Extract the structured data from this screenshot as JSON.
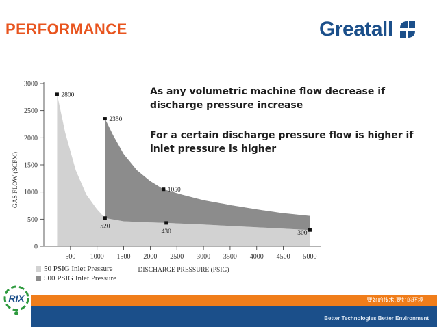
{
  "page": {
    "title": "PERFORMANCE",
    "logo_text": "Greatall",
    "notes": [
      "As any volumetric machine flow decrease if discharge pressure increase",
      "For a certain discharge pressure flow is higher if inlet pressure is higher"
    ],
    "footer_cn": "要好的技术,要好的环境",
    "footer_en": "Better Technologies  Better Environment",
    "rix_logo": "RIX"
  },
  "colors": {
    "title": "#e8541e",
    "logo_text": "#1b4f8a",
    "logo_mark": "#1b4f8a",
    "series_50": "#d2d2d2",
    "series_500": "#8c8c8c",
    "band_orange": "#f07d1a",
    "band_blue": "#1b4f8a"
  },
  "chart_data": {
    "type": "area",
    "xlabel": "DISCHARGE PRESSURE (PSIG)",
    "ylabel": "GAS FLOW (SCFM)",
    "xlim": [
      0,
      5200
    ],
    "ylim": [
      0,
      3000
    ],
    "xticks": [
      500,
      1000,
      1500,
      2000,
      2500,
      3000,
      3500,
      4000,
      4500,
      5000
    ],
    "yticks": [
      0,
      500,
      1000,
      1500,
      2000,
      2500,
      3000
    ],
    "series": [
      {
        "name": "50 PSIG Inlet Pressure",
        "upper": [
          [
            250,
            2800
          ],
          [
            400,
            2100
          ],
          [
            600,
            1400
          ],
          [
            800,
            950
          ],
          [
            1000,
            680
          ],
          [
            1150,
            520
          ],
          [
            1500,
            460
          ],
          [
            2000,
            440
          ],
          [
            2300,
            430
          ],
          [
            3000,
            400
          ],
          [
            4000,
            350
          ],
          [
            5000,
            300
          ]
        ],
        "lower": [
          [
            250,
            0
          ],
          [
            5000,
            0
          ]
        ]
      },
      {
        "name": "500 PSIG Inlet Pressure",
        "upper": [
          [
            1150,
            2350
          ],
          [
            1300,
            2050
          ],
          [
            1500,
            1700
          ],
          [
            1750,
            1400
          ],
          [
            2000,
            1200
          ],
          [
            2250,
            1050
          ],
          [
            2600,
            950
          ],
          [
            3000,
            850
          ],
          [
            3500,
            760
          ],
          [
            4000,
            680
          ],
          [
            4500,
            610
          ],
          [
            5000,
            560
          ]
        ],
        "lower": [
          [
            1150,
            520
          ],
          [
            1500,
            460
          ],
          [
            2000,
            440
          ],
          [
            2300,
            430
          ],
          [
            3000,
            400
          ],
          [
            4000,
            350
          ],
          [
            5000,
            300
          ]
        ]
      }
    ],
    "points": [
      {
        "x": 250,
        "y": 2800,
        "label": "2800",
        "pos": "right"
      },
      {
        "x": 1150,
        "y": 2350,
        "label": "2350",
        "pos": "right"
      },
      {
        "x": 2250,
        "y": 1050,
        "label": "1050",
        "pos": "right"
      },
      {
        "x": 1150,
        "y": 520,
        "label": "520",
        "pos": "below"
      },
      {
        "x": 2300,
        "y": 430,
        "label": "430",
        "pos": "below"
      },
      {
        "x": 5000,
        "y": 300,
        "label": "300",
        "pos": "left"
      }
    ],
    "legend_position": "bottom-left"
  }
}
